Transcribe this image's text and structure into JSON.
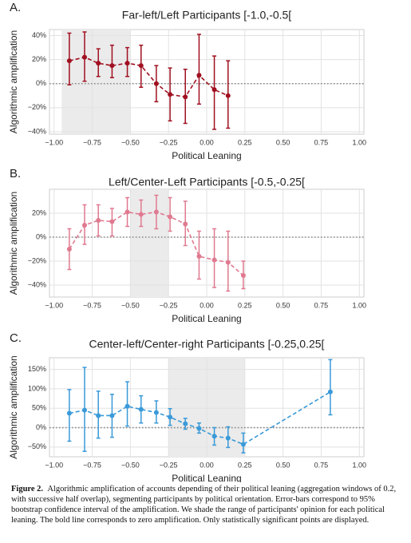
{
  "chart_data": [
    {
      "type": "errorline",
      "panel": "A.",
      "title": "Far-left/Left Participants [-1.0,-0.5[",
      "xlabel": "Political Leaning",
      "ylabel": "Algorithmic amplification",
      "color": "#a01020",
      "grid": true,
      "reference_line": 0,
      "shade": [
        -0.95,
        -0.5
      ],
      "xlim": [
        -1.03,
        1.03
      ],
      "ylim": [
        -42,
        45
      ],
      "xticks": [
        {
          "value": -1,
          "label": "−1.00"
        },
        {
          "value": -0.75,
          "label": "−0.75"
        },
        {
          "value": -0.5,
          "label": "−0.50"
        },
        {
          "value": -0.25,
          "label": "−0.25"
        },
        {
          "value": 0,
          "label": "0.00"
        },
        {
          "value": 0.25,
          "label": "0.25"
        },
        {
          "value": 0.5,
          "label": "0.50"
        },
        {
          "value": 0.75,
          "label": "0.75"
        },
        {
          "value": 1,
          "label": "1.00"
        }
      ],
      "yticks": [
        {
          "value": -40,
          "label": "−40%"
        },
        {
          "value": -20,
          "label": "−20%"
        },
        {
          "value": 0,
          "label": "0%"
        },
        {
          "value": 20,
          "label": "20%"
        },
        {
          "value": 40,
          "label": "40%"
        }
      ],
      "x": [
        -0.9,
        -0.8,
        -0.71,
        -0.62,
        -0.52,
        -0.43,
        -0.33,
        -0.24,
        -0.14,
        -0.05,
        0.05,
        0.14
      ],
      "values": [
        19,
        22,
        17,
        15,
        17,
        15,
        0,
        -9,
        -11,
        7,
        -5,
        -10
      ],
      "lower": [
        -1,
        2,
        6,
        5,
        6,
        -3,
        -15,
        -31,
        -33,
        -17,
        -38,
        -37
      ],
      "upper": [
        42,
        43,
        29,
        32,
        30,
        32,
        15,
        13,
        12,
        41,
        23,
        19
      ]
    },
    {
      "type": "errorline",
      "panel": "B.",
      "title": "Left/Center-Left Participants [-0.5,-0.25[",
      "xlabel": "Political Leaning",
      "ylabel": "Algorithmic amplification",
      "color": "#e07a90",
      "grid": true,
      "reference_line": 0,
      "shade": [
        -0.5,
        -0.25
      ],
      "xlim": [
        -1.03,
        1.03
      ],
      "ylim": [
        -50,
        40
      ],
      "xticks": [
        {
          "value": -1,
          "label": "−1.00"
        },
        {
          "value": -0.75,
          "label": "−0.75"
        },
        {
          "value": -0.5,
          "label": "−0.50"
        },
        {
          "value": -0.25,
          "label": "−0.25"
        },
        {
          "value": 0,
          "label": "0.00"
        },
        {
          "value": 0.25,
          "label": "0.25"
        },
        {
          "value": 0.5,
          "label": "0.50"
        },
        {
          "value": 0.75,
          "label": "0.75"
        },
        {
          "value": 1,
          "label": "1.00"
        }
      ],
      "yticks": [
        {
          "value": -40,
          "label": "−40%"
        },
        {
          "value": -20,
          "label": "−20%"
        },
        {
          "value": 0,
          "label": "0%"
        },
        {
          "value": 20,
          "label": "20%"
        }
      ],
      "x": [
        -0.9,
        -0.8,
        -0.71,
        -0.62,
        -0.52,
        -0.43,
        -0.33,
        -0.24,
        -0.14,
        -0.05,
        0.05,
        0.14,
        0.24
      ],
      "values": [
        -10,
        10,
        14,
        13,
        21,
        19,
        21,
        17,
        11,
        -16,
        -19,
        -21,
        -32
      ],
      "lower": [
        -27,
        -6,
        1,
        1,
        9,
        9,
        7,
        5,
        -7,
        -35,
        -42,
        -45,
        -43
      ],
      "upper": [
        7,
        27,
        27,
        24,
        33,
        31,
        35,
        33,
        30,
        5,
        7,
        5,
        -20
      ]
    },
    {
      "type": "errorline",
      "panel": "C.",
      "title": "Center-left/Center-right Participants [-0.25,0.25[",
      "xlabel": "Political Leaning",
      "ylabel": "Algorithmic amplification",
      "color": "#3a9ad9",
      "grid": true,
      "reference_line": 0,
      "shade": [
        -0.25,
        0.25
      ],
      "xlim": [
        -1.03,
        1.03
      ],
      "ylim": [
        -75,
        180
      ],
      "xticks": [
        {
          "value": -1,
          "label": "−1.00"
        },
        {
          "value": -0.75,
          "label": "−0.75"
        },
        {
          "value": -0.5,
          "label": "−0.50"
        },
        {
          "value": -0.25,
          "label": "−0.25"
        },
        {
          "value": 0,
          "label": "0.00"
        },
        {
          "value": 0.25,
          "label": "0.25"
        },
        {
          "value": 0.5,
          "label": "0.50"
        },
        {
          "value": 0.75,
          "label": "0.75"
        },
        {
          "value": 1,
          "label": "1.00"
        }
      ],
      "yticks": [
        {
          "value": -50,
          "label": "−50%"
        },
        {
          "value": 0,
          "label": "0%"
        },
        {
          "value": 50,
          "label": "50%"
        },
        {
          "value": 100,
          "label": "100%"
        },
        {
          "value": 150,
          "label": "150%"
        }
      ],
      "x": [
        -0.9,
        -0.8,
        -0.71,
        -0.62,
        -0.52,
        -0.43,
        -0.33,
        -0.24,
        -0.14,
        -0.05,
        0.05,
        0.14,
        0.24,
        0.81
      ],
      "values": [
        37,
        45,
        31,
        31,
        55,
        47,
        39,
        27,
        10,
        -2,
        -22,
        -27,
        -43,
        92
      ],
      "lower": [
        -35,
        -61,
        -27,
        -25,
        4,
        12,
        12,
        6,
        -4,
        -14,
        -45,
        -51,
        -65,
        33
      ],
      "upper": [
        98,
        155,
        94,
        86,
        118,
        82,
        69,
        49,
        24,
        12,
        0,
        2,
        -14,
        175
      ]
    }
  ],
  "caption": {
    "label": "Figure 2.",
    "text": "Algorithmic amplification of accounts depending of their political leaning (aggregation windows of 0.2, with successive half overlap), segmenting participants by political orientation. Error-bars correspond to 95% bootstrap confidence interval of the amplification. We shade the range of participants' opinion for each political leaning. The bold line corresponds to zero amplification. Only statistically significant points are displayed."
  }
}
